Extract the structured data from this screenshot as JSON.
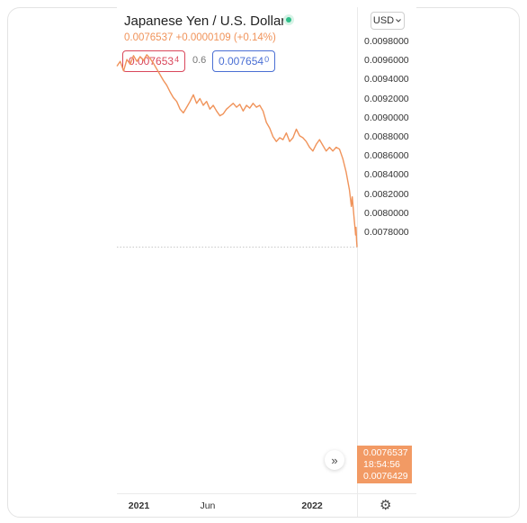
{
  "header": {
    "title": "Japanese Yen / U.S. Dollar",
    "price_change": "0.0076537 +0.0000109 (+0.14%)",
    "currency_selector": "USD",
    "bid": {
      "main": "0.007653",
      "small": "4"
    },
    "spread": "0.6",
    "ask": {
      "main": "0.007654",
      "small": "0"
    }
  },
  "current_label": {
    "price": "0.0076537",
    "countdown": "18:54:56",
    "second": "0.0076429"
  },
  "icons": {
    "status": "live-status-dot",
    "currency_menu": "chevron-down-icon",
    "scroll": "double-chevron-right-icon",
    "settings": "gear-icon"
  },
  "colors": {
    "line": "#f0935a",
    "bid": "#d9475b",
    "ask": "#4a6fd4",
    "status": "#2fbf8a"
  },
  "chart_data": {
    "type": "line",
    "title": "Japanese Yen / U.S. Dollar",
    "ylim": [
      0.00755,
      0.0098
    ],
    "yticks": [
      "0.0098000",
      "0.0096000",
      "0.0094000",
      "0.0092000",
      "0.0090000",
      "0.0088000",
      "0.0086000",
      "0.0084000",
      "0.0082000",
      "0.0080000",
      "0.0078000"
    ],
    "xlim": [
      "2020-11-15",
      "2022-04-05"
    ],
    "xticks": [
      {
        "label": "2021",
        "date": "2021-01-01",
        "bold": true
      },
      {
        "label": "Jun",
        "date": "2021-06-01",
        "bold": false
      },
      {
        "label": "2022",
        "date": "2022-01-01",
        "bold": true
      }
    ],
    "current_price": 0.0076537,
    "grid": false,
    "series": [
      {
        "points": [
          [
            "2020-11-15",
            0.00955
          ],
          [
            "2020-11-22",
            0.0096
          ],
          [
            "2020-11-29",
            0.0095
          ],
          [
            "2020-12-06",
            0.00962
          ],
          [
            "2020-12-13",
            0.00957
          ],
          [
            "2020-12-20",
            0.00966
          ],
          [
            "2020-12-27",
            0.0096
          ],
          [
            "2021-01-03",
            0.00965
          ],
          [
            "2021-01-10",
            0.00961
          ],
          [
            "2021-01-17",
            0.00967
          ],
          [
            "2021-01-24",
            0.00963
          ],
          [
            "2021-01-31",
            0.00958
          ],
          [
            "2021-02-07",
            0.00952
          ],
          [
            "2021-02-14",
            0.00946
          ],
          [
            "2021-02-21",
            0.0094
          ],
          [
            "2021-02-28",
            0.00935
          ],
          [
            "2021-03-07",
            0.00928
          ],
          [
            "2021-03-14",
            0.00922
          ],
          [
            "2021-03-21",
            0.00918
          ],
          [
            "2021-03-28",
            0.0091
          ],
          [
            "2021-04-04",
            0.00906
          ],
          [
            "2021-04-11",
            0.00912
          ],
          [
            "2021-04-18",
            0.00918
          ],
          [
            "2021-04-25",
            0.00925
          ],
          [
            "2021-05-02",
            0.00916
          ],
          [
            "2021-05-09",
            0.00921
          ],
          [
            "2021-05-16",
            0.00914
          ],
          [
            "2021-05-23",
            0.00918
          ],
          [
            "2021-05-30",
            0.0091
          ],
          [
            "2021-06-06",
            0.00914
          ],
          [
            "2021-06-13",
            0.00908
          ],
          [
            "2021-06-20",
            0.00903
          ],
          [
            "2021-06-27",
            0.00905
          ],
          [
            "2021-07-04",
            0.0091
          ],
          [
            "2021-07-11",
            0.00913
          ],
          [
            "2021-07-18",
            0.00916
          ],
          [
            "2021-07-25",
            0.00912
          ],
          [
            "2021-08-01",
            0.00915
          ],
          [
            "2021-08-08",
            0.00908
          ],
          [
            "2021-08-15",
            0.00914
          ],
          [
            "2021-08-22",
            0.00911
          ],
          [
            "2021-08-29",
            0.00916
          ],
          [
            "2021-09-05",
            0.00912
          ],
          [
            "2021-09-12",
            0.00914
          ],
          [
            "2021-09-19",
            0.00908
          ],
          [
            "2021-09-26",
            0.00896
          ],
          [
            "2021-10-03",
            0.0089
          ],
          [
            "2021-10-10",
            0.00881
          ],
          [
            "2021-10-17",
            0.00876
          ],
          [
            "2021-10-24",
            0.0088
          ],
          [
            "2021-10-31",
            0.00878
          ],
          [
            "2021-11-07",
            0.00885
          ],
          [
            "2021-11-14",
            0.00876
          ],
          [
            "2021-11-21",
            0.0088
          ],
          [
            "2021-11-28",
            0.00889
          ],
          [
            "2021-12-05",
            0.00882
          ],
          [
            "2021-12-12",
            0.0088
          ],
          [
            "2021-12-19",
            0.00876
          ],
          [
            "2021-12-26",
            0.0087
          ],
          [
            "2022-01-02",
            0.00866
          ],
          [
            "2022-01-09",
            0.00873
          ],
          [
            "2022-01-16",
            0.00878
          ],
          [
            "2022-01-23",
            0.00872
          ],
          [
            "2022-01-30",
            0.00866
          ],
          [
            "2022-02-06",
            0.0087
          ],
          [
            "2022-02-13",
            0.00866
          ],
          [
            "2022-02-20",
            0.0087
          ],
          [
            "2022-02-27",
            0.00868
          ],
          [
            "2022-03-06",
            0.00858
          ],
          [
            "2022-03-13",
            0.00844
          ],
          [
            "2022-03-20",
            0.00825
          ],
          [
            "2022-03-24",
            0.00808
          ],
          [
            "2022-03-26",
            0.00818
          ],
          [
            "2022-03-28",
            0.00806
          ],
          [
            "2022-03-30",
            0.00795
          ],
          [
            "2022-04-01",
            0.00784
          ],
          [
            "2022-04-02",
            0.00778
          ],
          [
            "2022-04-03",
            0.00786
          ],
          [
            "2022-04-04",
            0.00772
          ],
          [
            "2022-04-05",
            0.007654
          ]
        ]
      }
    ]
  }
}
